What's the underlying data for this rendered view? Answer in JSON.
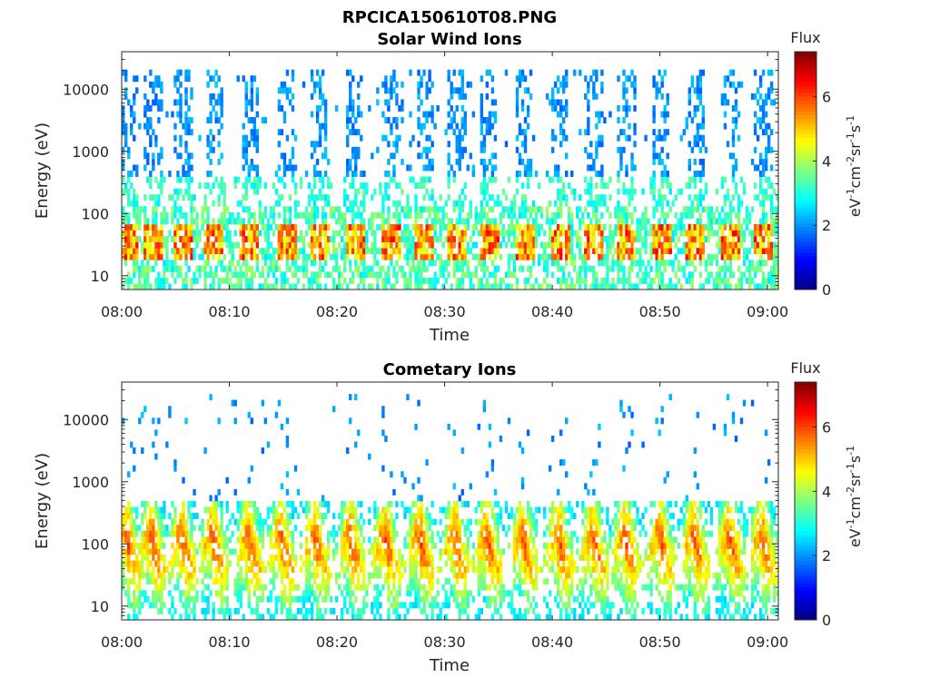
{
  "figure_title": "RPCICA150610T08.PNG",
  "chart_data": [
    {
      "type": "heatmap",
      "title": "Solar Wind Ions",
      "xlabel": "Time",
      "ylabel": "Energy (eV)",
      "x_ticks": [
        "08:00",
        "08:10",
        "08:20",
        "08:30",
        "08:40",
        "08:50",
        "09:00"
      ],
      "y_ticks": [
        "10",
        "100",
        "1000",
        "10000"
      ],
      "yscale": "log",
      "ylim": [
        6,
        40000
      ],
      "xlim_minutes": [
        0,
        61
      ],
      "colorbar": {
        "title": "Flux",
        "label": "eV-1cm-2sr-1s-1",
        "ticks": [
          "0",
          "2",
          "4",
          "6"
        ],
        "range": [
          0,
          7.4
        ],
        "colormap": "jet"
      },
      "population": "solar-wind",
      "burst_minutes": [
        0.5,
        2.8,
        5.6,
        8.5,
        11.8,
        15.2,
        18.2,
        21.5,
        24.8,
        28.0,
        31.0,
        34.0,
        37.3,
        40.6,
        43.8,
        46.8,
        50.0,
        53.2,
        56.5,
        59.5
      ]
    },
    {
      "type": "heatmap",
      "title": "Cometary Ions",
      "xlabel": "Time",
      "ylabel": "Energy (eV)",
      "x_ticks": [
        "08:00",
        "08:10",
        "08:20",
        "08:30",
        "08:40",
        "08:50",
        "09:00"
      ],
      "y_ticks": [
        "10",
        "100",
        "1000",
        "10000"
      ],
      "yscale": "log",
      "ylim": [
        6,
        40000
      ],
      "xlim_minutes": [
        0,
        61
      ],
      "colorbar": {
        "title": "Flux",
        "label": "eV-1cm-2sr-1s-1",
        "ticks": [
          "0",
          "2",
          "4",
          "6"
        ],
        "range": [
          0,
          7.4
        ],
        "colormap": "jet"
      },
      "population": "cometary",
      "burst_minutes": [
        0.5,
        2.8,
        5.6,
        8.5,
        11.8,
        14.8,
        18.0,
        21.3,
        24.5,
        27.7,
        31.0,
        34.0,
        37.3,
        40.6,
        43.8,
        46.8,
        50.0,
        53.2,
        56.5,
        59.5
      ]
    }
  ]
}
